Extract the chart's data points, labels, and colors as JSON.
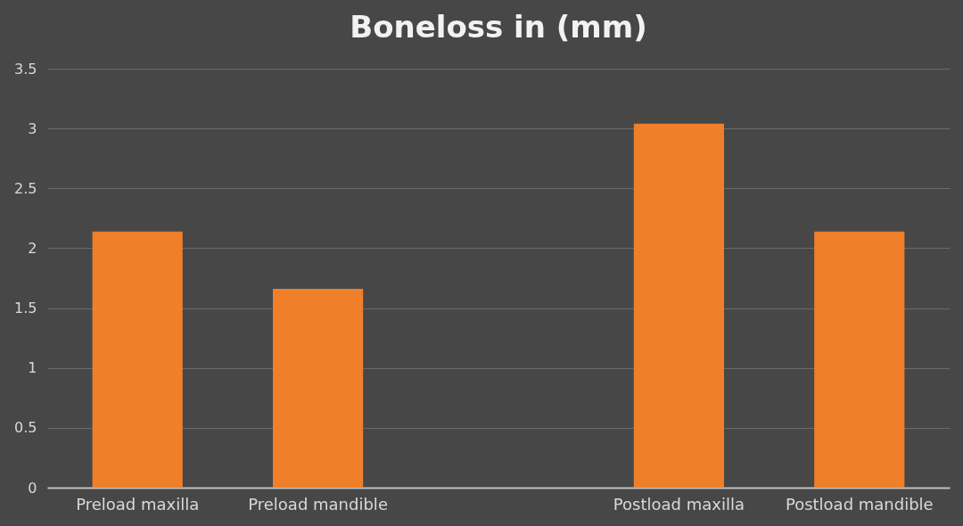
{
  "chart_data": {
    "type": "bar",
    "title": "Boneloss in (mm)",
    "categories": [
      "Preload maxilla",
      "Preload mandible",
      null,
      "Postload maxilla",
      "Postload mandible"
    ],
    "values": [
      2.14,
      1.66,
      null,
      3.04,
      2.14
    ],
    "color": "#f07f2a",
    "ylim": [
      0,
      3.5
    ],
    "yticks": [
      0,
      0.5,
      1,
      1.5,
      2,
      2.5,
      3,
      3.5
    ],
    "grid": "y"
  }
}
